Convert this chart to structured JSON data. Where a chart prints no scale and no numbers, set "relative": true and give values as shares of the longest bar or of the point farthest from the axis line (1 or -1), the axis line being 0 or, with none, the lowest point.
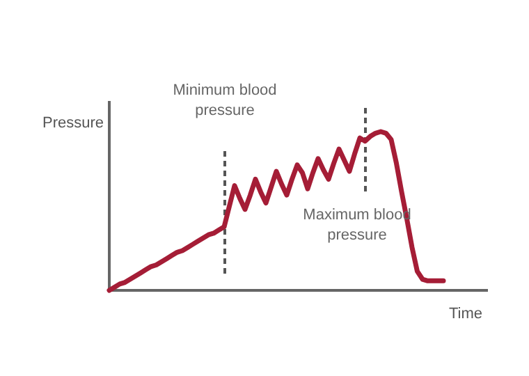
{
  "chart_data": {
    "type": "line",
    "relative": true,
    "xlabel": "Time",
    "ylabel": "Pressure",
    "color": "#a51d36",
    "categories": [
      null,
      null,
      null,
      null,
      null,
      null,
      null,
      null,
      null,
      null,
      null,
      null,
      null,
      null,
      null,
      null,
      null,
      null,
      null,
      null,
      null,
      null,
      null,
      null,
      null,
      null,
      null,
      null,
      null,
      null,
      null,
      null,
      null,
      null,
      null,
      null,
      null,
      null,
      null,
      null,
      null,
      null,
      null,
      null,
      null,
      null,
      null,
      null,
      null,
      null,
      null,
      null,
      null,
      null,
      null,
      null,
      null,
      null,
      null,
      null,
      null,
      null,
      null,
      null,
      null
    ],
    "values": [
      0,
      0.02,
      0.04,
      0.05,
      0.07,
      0.09,
      0.11,
      0.13,
      0.15,
      0.16,
      0.18,
      0.2,
      0.22,
      0.24,
      0.25,
      0.27,
      0.29,
      0.31,
      0.33,
      0.35,
      0.36,
      0.38,
      0.4,
      0.53,
      0.66,
      0.58,
      0.51,
      0.6,
      0.7,
      0.62,
      0.55,
      0.65,
      0.75,
      0.67,
      0.6,
      0.7,
      0.79,
      0.74,
      0.64,
      0.74,
      0.83,
      0.76,
      0.7,
      0.8,
      0.89,
      0.82,
      0.75,
      0.86,
      0.96,
      0.94,
      0.97,
      0.99,
      1,
      0.99,
      0.95,
      0.8,
      0.62,
      0.45,
      0.27,
      0.12,
      0.07,
      0.06,
      0.06,
      0.06,
      0.06
    ],
    "annotations": [
      "Minimum blood\npressure",
      "Maximum blood\npressure"
    ]
  }
}
